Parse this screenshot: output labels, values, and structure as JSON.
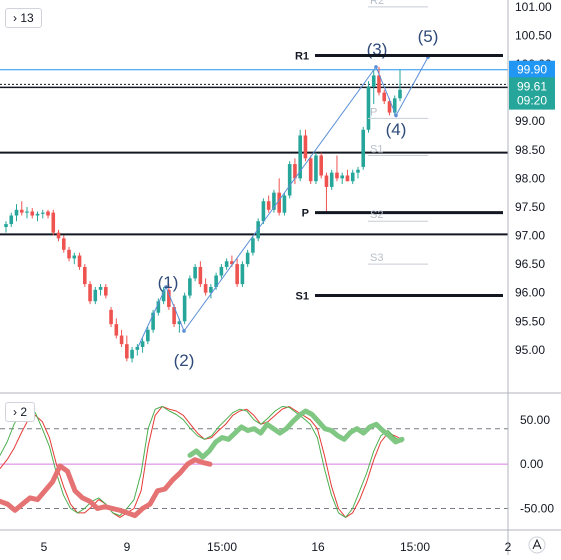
{
  "chart_data": [
    {
      "type": "candlestick",
      "interval_label": "13",
      "y_axis": {
        "ylim": [
          94.7,
          101.05
        ],
        "ticks": [
          "101.00",
          "100.50",
          "100.00",
          "99.50",
          "99.00",
          "98.50",
          "98.00",
          "97.50",
          "97.00",
          "96.50",
          "96.00",
          "95.50",
          "95.00"
        ]
      },
      "x_axis": {
        "ticks": [
          "5",
          "9",
          "15:00",
          "16",
          "15:00",
          "2"
        ]
      },
      "price_labels": [
        {
          "label": "99.90",
          "value": 99.9,
          "color": "#2196f3"
        },
        {
          "label": "99.61",
          "value": 99.61,
          "color": "#26a69a"
        },
        {
          "label": "09:20",
          "value": 99.36,
          "color": "#26a69a"
        }
      ],
      "pivots_left": [
        {
          "label": "R1",
          "value": 100.15
        },
        {
          "label": "P",
          "value": 97.4
        },
        {
          "label": "S1",
          "value": 95.95
        }
      ],
      "pivots_right": [
        {
          "label": "R2",
          "value": 101.0
        },
        {
          "label": "P",
          "value": 99.05
        },
        {
          "label": "S1",
          "value": 98.4
        },
        {
          "label": "S2",
          "value": 97.25
        },
        {
          "label": "S3",
          "value": 96.5
        }
      ],
      "horizontal_levels": [
        99.9,
        99.61,
        98.45,
        97.02,
        95.95
      ],
      "elliott_wave": [
        {
          "label": "(1)",
          "value": 96.1
        },
        {
          "label": "(2)",
          "value": 95.33
        },
        {
          "label": "(3)",
          "value": 99.95
        },
        {
          "label": "(4)",
          "value": 99.1
        },
        {
          "label": "(5)",
          "value": 100.12
        }
      ],
      "candles": [
        [
          97.15,
          97.25,
          97.05,
          97.2
        ],
        [
          97.2,
          97.4,
          97.15,
          97.35
        ],
        [
          97.35,
          97.55,
          97.25,
          97.45
        ],
        [
          97.45,
          97.6,
          97.35,
          97.4
        ],
        [
          97.4,
          97.5,
          97.3,
          97.42
        ],
        [
          97.42,
          97.48,
          97.3,
          97.35
        ],
        [
          97.35,
          97.42,
          97.25,
          97.38
        ],
        [
          97.38,
          97.45,
          97.3,
          97.4
        ],
        [
          97.42,
          97.45,
          97.3,
          97.35
        ],
        [
          97.4,
          97.45,
          97.0,
          97.05
        ],
        [
          97.05,
          97.1,
          96.9,
          96.95
        ],
        [
          96.95,
          97.0,
          96.7,
          96.75
        ],
        [
          96.75,
          96.8,
          96.55,
          96.6
        ],
        [
          96.6,
          96.7,
          96.5,
          96.65
        ],
        [
          96.65,
          96.7,
          96.4,
          96.45
        ],
        [
          96.45,
          96.5,
          96.1,
          96.15
        ],
        [
          96.15,
          96.2,
          95.8,
          95.85
        ],
        [
          95.85,
          96.1,
          95.8,
          96.05
        ],
        [
          96.05,
          96.15,
          95.95,
          96.1
        ],
        [
          96.1,
          96.15,
          95.9,
          95.95
        ],
        [
          95.7,
          95.75,
          95.4,
          95.45
        ],
        [
          95.45,
          95.55,
          95.2,
          95.25
        ],
        [
          95.25,
          95.35,
          95.05,
          95.1
        ],
        [
          95.1,
          95.25,
          94.8,
          94.85
        ],
        [
          94.85,
          95.05,
          94.78,
          95.0
        ],
        [
          95.0,
          95.1,
          94.9,
          95.05
        ],
        [
          95.05,
          95.2,
          94.95,
          95.15
        ],
        [
          95.15,
          95.4,
          95.1,
          95.35
        ],
        [
          95.35,
          95.7,
          95.3,
          95.65
        ],
        [
          95.65,
          95.9,
          95.6,
          95.85
        ],
        [
          95.85,
          96.1,
          95.8,
          96.05
        ],
        [
          96.05,
          96.15,
          95.7,
          95.75
        ],
        [
          95.75,
          95.8,
          95.4,
          95.45
        ],
        [
          95.45,
          95.55,
          95.3,
          95.5
        ],
        [
          95.5,
          96.0,
          95.45,
          95.95
        ],
        [
          95.95,
          96.3,
          95.9,
          96.25
        ],
        [
          96.25,
          96.5,
          96.2,
          96.45
        ],
        [
          96.45,
          96.55,
          96.1,
          96.15
        ],
        [
          96.15,
          96.25,
          95.95,
          96.0
        ],
        [
          96.0,
          96.15,
          95.9,
          96.1
        ],
        [
          96.1,
          96.35,
          96.05,
          96.3
        ],
        [
          96.3,
          96.5,
          96.25,
          96.45
        ],
        [
          96.45,
          96.6,
          96.4,
          96.55
        ],
        [
          96.55,
          96.65,
          96.45,
          96.5
        ],
        [
          96.5,
          96.6,
          96.1,
          96.15
        ],
        [
          96.15,
          96.55,
          96.1,
          96.5
        ],
        [
          96.5,
          96.75,
          96.45,
          96.7
        ],
        [
          96.7,
          97.0,
          96.65,
          96.95
        ],
        [
          96.95,
          97.3,
          96.9,
          97.25
        ],
        [
          97.25,
          97.65,
          97.2,
          97.6
        ],
        [
          97.6,
          97.7,
          97.4,
          97.45
        ],
        [
          97.45,
          97.8,
          97.4,
          97.75
        ],
        [
          97.75,
          98.0,
          97.35,
          97.4
        ],
        [
          97.4,
          97.75,
          97.35,
          97.7
        ],
        [
          97.7,
          98.3,
          97.65,
          98.25
        ],
        [
          98.25,
          98.35,
          97.9,
          98.0
        ],
        [
          98.0,
          98.85,
          97.95,
          98.75
        ],
        [
          98.75,
          98.85,
          98.3,
          98.35
        ],
        [
          98.35,
          98.4,
          97.9,
          97.95
        ],
        [
          97.95,
          98.45,
          97.9,
          98.4
        ],
        [
          98.4,
          98.45,
          98.0,
          98.05
        ],
        [
          98.05,
          98.1,
          97.4,
          97.85
        ],
        [
          97.85,
          98.15,
          97.8,
          98.1
        ],
        [
          98.1,
          98.4,
          97.95,
          98.0
        ],
        [
          98.0,
          98.1,
          97.9,
          98.05
        ],
        [
          98.05,
          98.15,
          97.95,
          97.95
        ],
        [
          97.95,
          98.15,
          97.9,
          98.1
        ],
        [
          98.1,
          98.2,
          98.0,
          98.15
        ],
        [
          98.2,
          98.9,
          98.15,
          98.85
        ],
        [
          98.85,
          99.7,
          98.8,
          99.6
        ],
        [
          99.6,
          99.9,
          99.3,
          99.8
        ],
        [
          99.8,
          99.95,
          99.45,
          99.5
        ],
        [
          99.5,
          99.55,
          99.3,
          99.35
        ],
        [
          99.35,
          99.4,
          99.1,
          99.15
        ],
        [
          99.15,
          99.45,
          99.1,
          99.4
        ],
        [
          99.4,
          99.9,
          99.35,
          99.55
        ]
      ]
    },
    {
      "type": "line",
      "interval_label": "2",
      "ylim": [
        -72,
        78
      ],
      "y_ticks": [
        "50.00",
        "0.00",
        "-50.00"
      ],
      "reference_levels": [
        40,
        0,
        -50
      ],
      "series": [
        {
          "color": "#e53935",
          "values": [
            -5,
            5,
            18,
            35,
            50,
            55,
            48,
            30,
            0,
            -25,
            -45,
            -55,
            -55,
            -48,
            -40,
            -45,
            -55,
            -60,
            -55,
            -50,
            -30,
            20,
            55,
            65,
            62,
            60,
            55,
            45,
            35,
            28,
            30,
            38,
            45,
            55,
            60,
            62,
            55,
            45,
            48,
            55,
            62,
            65,
            60,
            55,
            50,
            40,
            10,
            -25,
            -50,
            -60,
            -55,
            -40,
            -20,
            5,
            25,
            35,
            32,
            28
          ]
        },
        {
          "color": "#4caf50",
          "values": [
            10,
            25,
            45,
            60,
            62,
            58,
            40,
            20,
            -10,
            -35,
            -50,
            -55,
            -50,
            -42,
            -38,
            -45,
            -55,
            -58,
            -50,
            -40,
            -10,
            40,
            62,
            65,
            60,
            56,
            50,
            40,
            32,
            28,
            32,
            42,
            50,
            58,
            62,
            60,
            50,
            45,
            52,
            60,
            65,
            64,
            58,
            52,
            45,
            30,
            -5,
            -35,
            -55,
            -60,
            -50,
            -30,
            -10,
            15,
            32,
            38,
            30,
            25
          ]
        },
        {
          "color": "#e57373",
          "values": [
            -42,
            -45,
            -52,
            -45,
            -38,
            -40,
            -30,
            -20,
            -2,
            -8,
            -30,
            -38,
            -42,
            -50,
            -48,
            -50,
            -52,
            -55,
            -58,
            -50,
            -45,
            -30,
            -28,
            -18,
            -10,
            0,
            5,
            2,
            0
          ]
        },
        {
          "color": "#81c784",
          "values": [
            10,
            15,
            8,
            15,
            25,
            30,
            28,
            35,
            42,
            38,
            40,
            35,
            45,
            40,
            35,
            40,
            48,
            55,
            60,
            56,
            48,
            40,
            38,
            32,
            28,
            36,
            40,
            35,
            42,
            45,
            38,
            32,
            25,
            28
          ]
        }
      ]
    }
  ]
}
